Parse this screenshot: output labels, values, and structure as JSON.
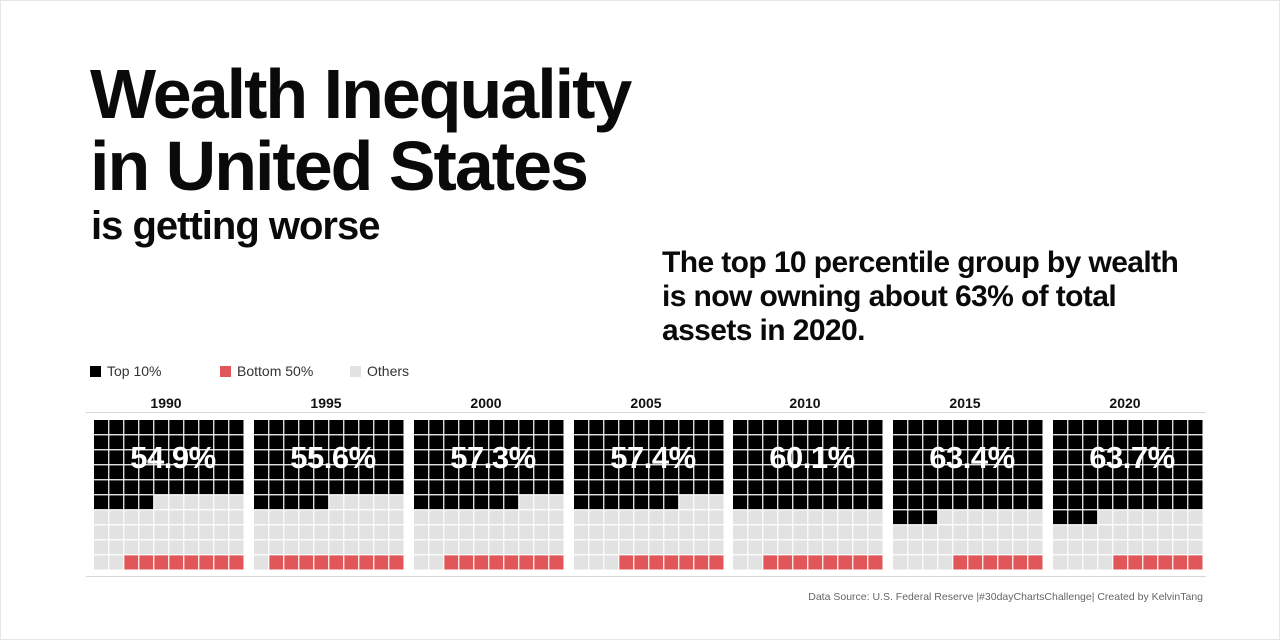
{
  "header": {
    "title_line1": "Wealth Inequality",
    "title_line2": "in United States",
    "subtitle": "is getting worse"
  },
  "callout": {
    "line1": "The top 10 percentile group by wealth",
    "line2": "is now owning about 63% of total",
    "line3": "assets in 2020."
  },
  "legend": [
    {
      "label": "Top 10%",
      "color": "#000000"
    },
    {
      "label": "Bottom 50%",
      "color": "#e15759"
    },
    {
      "label": "Others",
      "color": "#e2e2e2"
    }
  ],
  "chart_data": {
    "type": "waffle",
    "grid": "10x10",
    "colors": {
      "top": "#000000",
      "bottom": "#e15759",
      "others": "#e2e2e2"
    },
    "categories": [
      "1990",
      "1995",
      "2000",
      "2005",
      "2010",
      "2015",
      "2020"
    ],
    "series": [
      {
        "name": "Top 10%",
        "values": [
          54.9,
          55.6,
          57.3,
          57.4,
          60.1,
          63.4,
          63.7
        ],
        "cells": [
          54,
          55,
          57,
          57,
          60,
          63,
          63
        ]
      },
      {
        "name": "Bottom 50%",
        "cells": [
          8,
          9,
          8,
          7,
          8,
          6,
          6
        ]
      },
      {
        "name": "Others"
      }
    ],
    "labels": [
      "54.9%",
      "55.6%",
      "57.3%",
      "57.4%",
      "60.1%",
      "63.4%",
      "63.7%"
    ]
  },
  "footer": {
    "source": "Data Source: U.S. Federal Reserve |#30dayChartsChallenge| Created by KelvinTang"
  }
}
